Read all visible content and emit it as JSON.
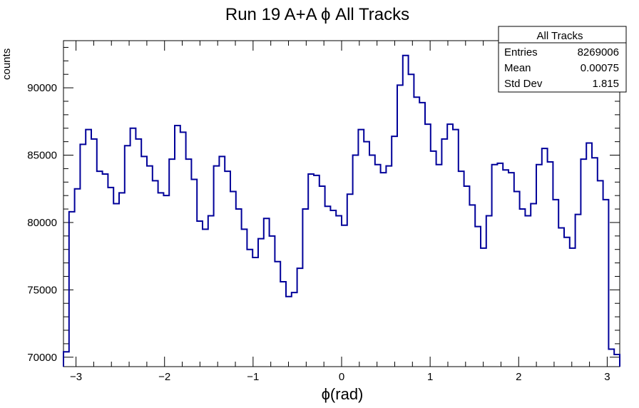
{
  "chart_data": {
    "type": "histogram",
    "title": "Run 19 A+A  ϕ All Tracks",
    "xlabel": "ϕ(rad)",
    "ylabel": "counts",
    "xlim": [
      -3.14159,
      3.14159
    ],
    "ylim": [
      69300,
      93500
    ],
    "x_ticks": [
      -3,
      -2,
      -1,
      0,
      1,
      2,
      3
    ],
    "x_tick_labels": [
      "−3",
      "−2",
      "−1",
      "0",
      "1",
      "2",
      "3"
    ],
    "y_ticks": [
      70000,
      75000,
      80000,
      85000,
      90000
    ],
    "y_tick_labels": [
      "70000",
      "75000",
      "80000",
      "85000",
      "90000"
    ],
    "line_color": "#000099",
    "bins": 100,
    "values": [
      70400,
      80800,
      82500,
      85800,
      86900,
      86200,
      83800,
      83600,
      82600,
      81400,
      82200,
      85700,
      87000,
      86200,
      84900,
      84200,
      83100,
      82200,
      82000,
      84700,
      87200,
      86700,
      84700,
      83200,
      80100,
      79500,
      80500,
      84200,
      84900,
      83800,
      82300,
      81000,
      79500,
      78000,
      77400,
      78800,
      80300,
      79000,
      77100,
      75600,
      74500,
      74800,
      76600,
      81000,
      83600,
      83500,
      82700,
      81200,
      80900,
      80500,
      79800,
      82100,
      85000,
      86900,
      86000,
      85000,
      84300,
      83700,
      84200,
      86400,
      90200,
      92400,
      91000,
      89300,
      88900,
      87300,
      85300,
      84300,
      86200,
      87300,
      86900,
      83800,
      82700,
      81300,
      79700,
      78100,
      80500,
      84300,
      84400,
      83900,
      83700,
      82300,
      81000,
      80500,
      81400,
      84300,
      85500,
      84500,
      81700,
      79600,
      78900,
      78100,
      80600,
      84700,
      85900,
      84800,
      83100,
      81700,
      70600,
      70200
    ],
    "stats_box": {
      "title": "All Tracks",
      "rows": [
        {
          "label": "Entries",
          "value": "8269006"
        },
        {
          "label": "Mean",
          "value": "0.00075"
        },
        {
          "label": "Std Dev",
          "value": "1.815"
        }
      ]
    }
  }
}
